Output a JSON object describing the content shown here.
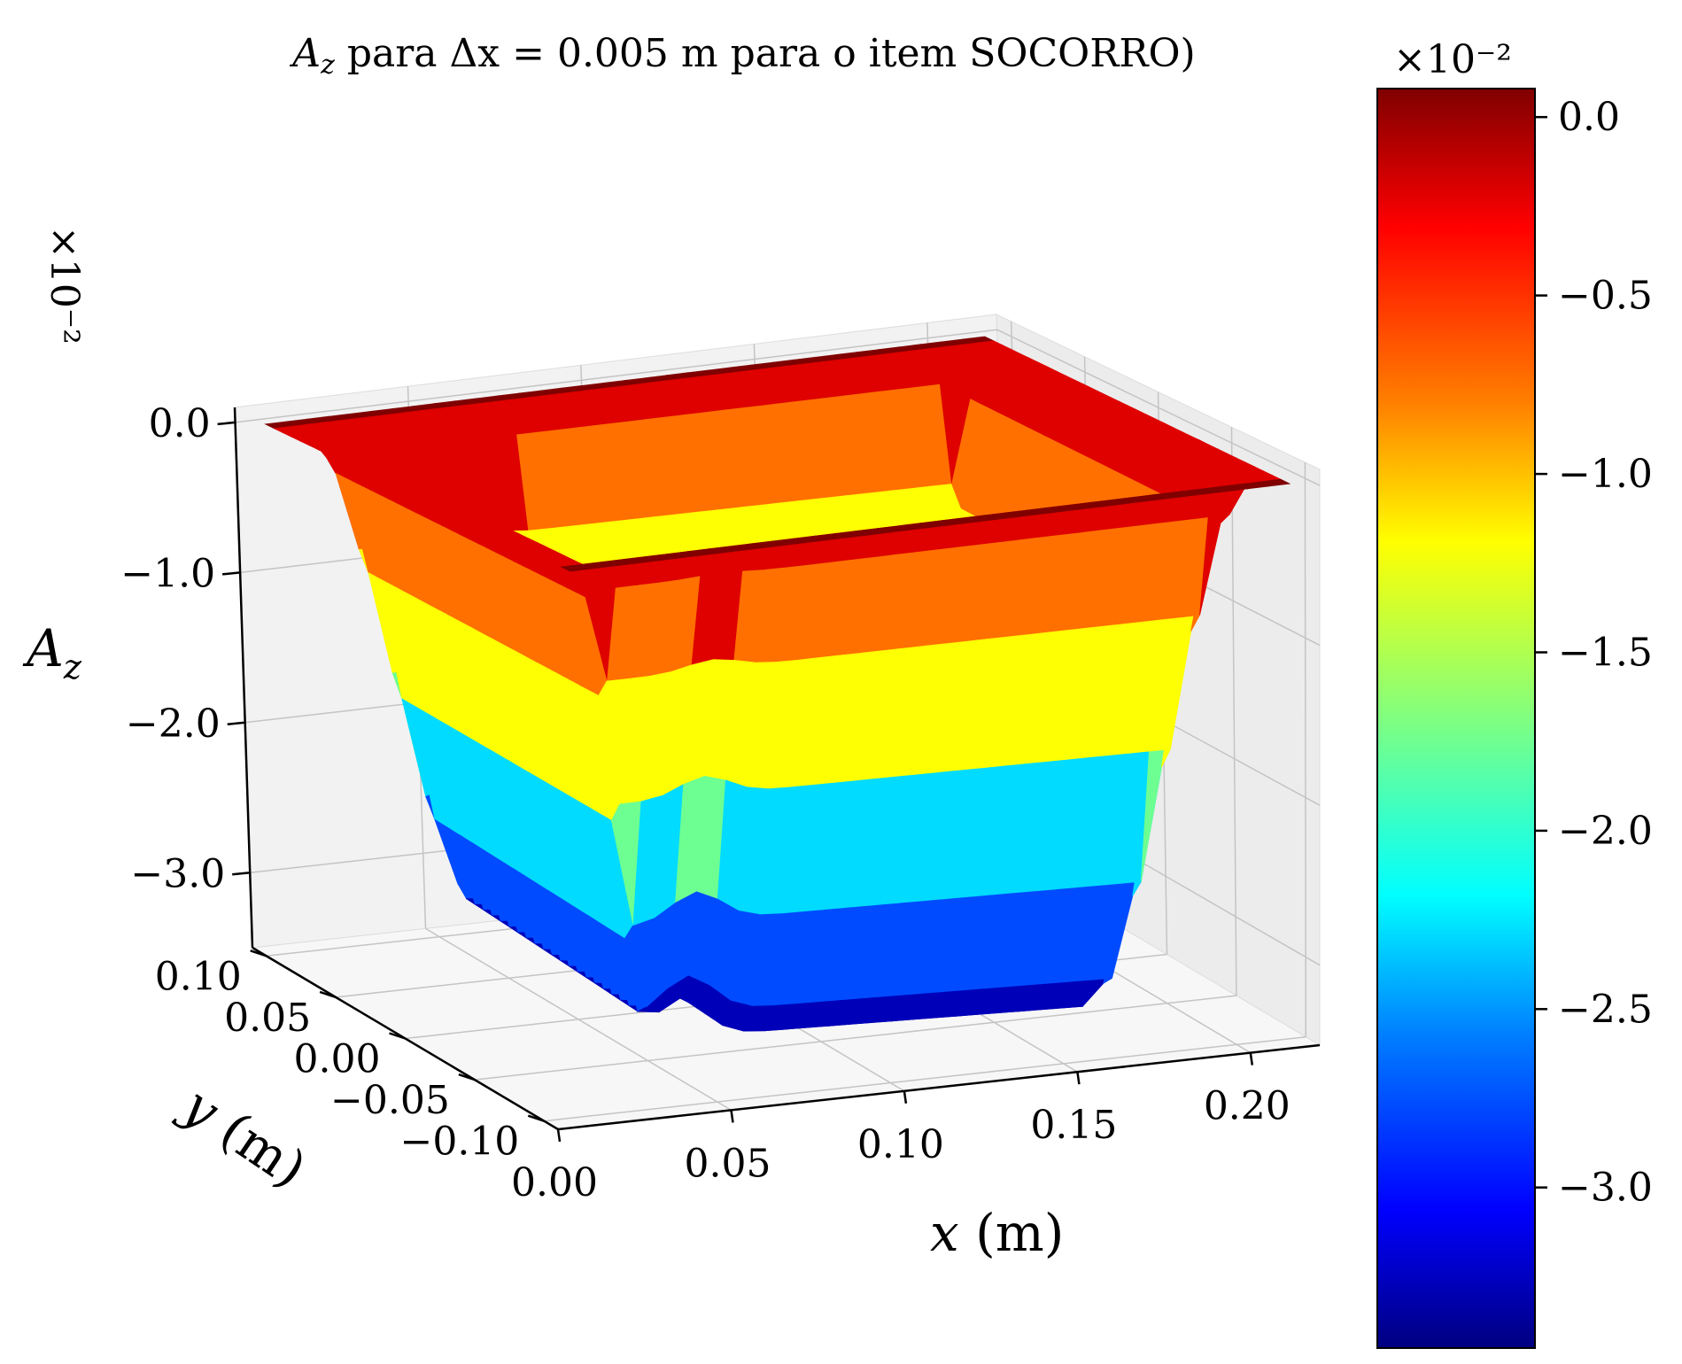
{
  "chart_data": [
    {
      "type": "surface",
      "title": "A_z para Δx = 0.005 m para o item SOCORRO)",
      "title_parts": {
        "symbol": "A",
        "symbol_sub": "z",
        "text1": " para ",
        "delta_expr": "Δx = 0.005",
        "text2": " m para o item SOCORRO)"
      },
      "xlabel": "x (m)",
      "xlabel_parts": {
        "var": "x",
        "unit": " (m)"
      },
      "ylabel": "y (m)",
      "ylabel_parts": {
        "var": "y",
        "unit": " (m)"
      },
      "zlabel": "A_z",
      "zlabel_parts": {
        "symbol": "A",
        "sub": "z"
      },
      "z_offset_text": "×10⁻²",
      "x_ticks": [
        "0.00",
        "0.05",
        "0.10",
        "0.15",
        "0.20"
      ],
      "x_tick_values": [
        0.0,
        0.05,
        0.1,
        0.15,
        0.2
      ],
      "y_ticks": [
        "−0.10",
        "−0.05",
        "0.00",
        "0.05",
        "0.10"
      ],
      "y_tick_values": [
        -0.1,
        -0.05,
        0.0,
        0.05,
        0.1
      ],
      "z_ticks": [
        "−3.0",
        "−2.0",
        "−1.0",
        "0.0"
      ],
      "z_tick_values": [
        -3.0,
        -2.0,
        -1.0,
        0.0
      ],
      "xlim": [
        0.0,
        0.22
      ],
      "ylim": [
        -0.11,
        0.11
      ],
      "zlim": [
        -3.5,
        0.1
      ],
      "z_units_scale": "×10⁻²",
      "colormap": "jet",
      "contour_levels": [
        0.0,
        -0.5,
        -1.0,
        -1.5,
        -2.0,
        -2.5,
        -3.0,
        -3.5
      ],
      "surface_description_values": {
        "outer_rim_value": 0.0,
        "inner_minimum_value": -3.3
      },
      "grid": true
    },
    {
      "type": "colorbar",
      "offset_text": "×10⁻²",
      "ticks": [
        "0.0",
        "−0.5",
        "−1.0",
        "−1.5",
        "−2.0",
        "−2.5",
        "−3.0"
      ],
      "tick_values": [
        0.0,
        -0.5,
        -1.0,
        -1.5,
        -2.0,
        -2.5,
        -3.0
      ],
      "range": [
        -3.45,
        0.08
      ],
      "colormap": "jet"
    }
  ],
  "colors": {
    "jet": [
      "#00007f",
      "#0000ff",
      "#007fff",
      "#00ffff",
      "#7fff7f",
      "#ffff00",
      "#ff7f00",
      "#ff0000",
      "#7f0000"
    ],
    "pane": "#f5f5f5",
    "grid": "#c8c8c8"
  }
}
